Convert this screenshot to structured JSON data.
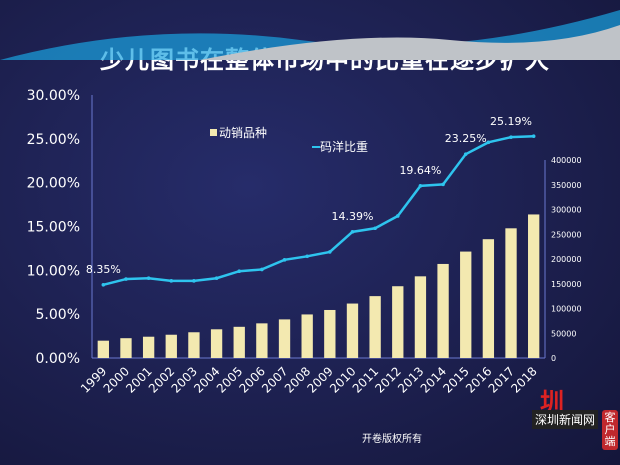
{
  "chart_data": {
    "type": "bar+line",
    "title": "少儿图书在整体市场中的比重在逐步扩大",
    "categories": [
      "1999",
      "2000",
      "2001",
      "2002",
      "2003",
      "2004",
      "2005",
      "2006",
      "2007",
      "2008",
      "2009",
      "2010",
      "2011",
      "2012",
      "2013",
      "2014",
      "2015",
      "2016",
      "2017",
      "2018"
    ],
    "series": [
      {
        "name": "动销品种",
        "type": "bar",
        "axis": "right",
        "color": "#f3e9b0",
        "values": [
          35000,
          40000,
          43000,
          47000,
          52000,
          58000,
          63000,
          70000,
          78000,
          88000,
          97000,
          110000,
          125000,
          145000,
          165000,
          190000,
          215000,
          240000,
          262000,
          290000
        ]
      },
      {
        "name": "码洋比重",
        "type": "line",
        "axis": "left",
        "color": "#2ec4ee",
        "values": [
          8.35,
          9.0,
          9.1,
          8.8,
          8.8,
          9.1,
          9.9,
          10.1,
          11.2,
          11.6,
          12.1,
          14.39,
          14.8,
          16.2,
          19.64,
          19.8,
          23.25,
          24.6,
          25.19,
          25.3
        ]
      }
    ],
    "data_labels": [
      {
        "category": "1999",
        "text": "8.35%"
      },
      {
        "category": "2010",
        "text": "14.39%"
      },
      {
        "category": "2013",
        "text": "19.64%"
      },
      {
        "category": "2015",
        "text": "23.25%"
      },
      {
        "category": "2017",
        "text": "25.19%"
      }
    ],
    "left_axis": {
      "ylim": [
        0,
        30
      ],
      "ticks": [
        "0.00%",
        "5.00%",
        "10.00%",
        "15.00%",
        "20.00%",
        "25.00%",
        "30.00%"
      ]
    },
    "right_axis": {
      "ylim": [
        0,
        400000
      ],
      "ticks": [
        "0",
        "50000",
        "100000",
        "150000",
        "200000",
        "250000",
        "300000",
        "350000",
        "400000"
      ]
    },
    "legend": "top-left",
    "grid": false
  },
  "footer": {
    "copyright": "开卷版权所有",
    "brand": "深圳新闻网",
    "brand_tag": "客户端"
  }
}
